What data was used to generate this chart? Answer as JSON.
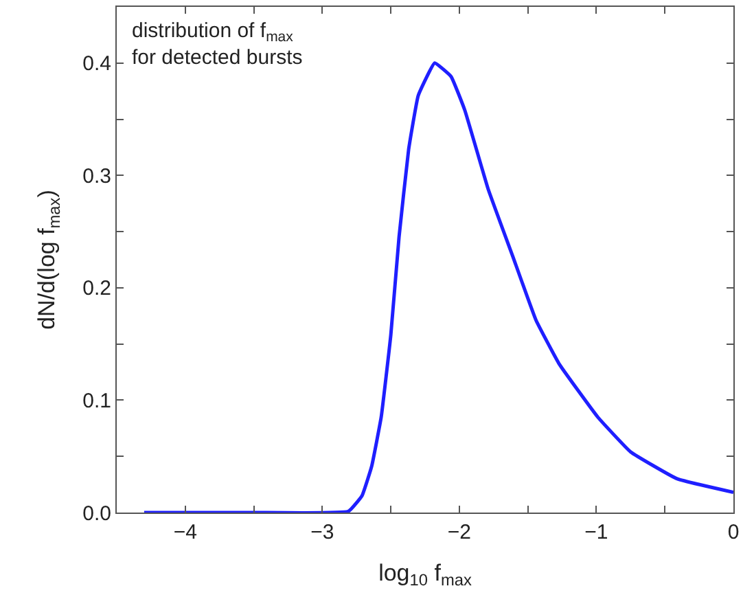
{
  "chart_data": {
    "type": "line",
    "xlabel": "log$_{10}$ f$_{max}$",
    "ylabel": "dN/d(log f$_{max}$)",
    "annotations": [
      "distribution of f$_{max}$\nfor detected bursts"
    ],
    "x": [
      -4.3,
      -3.5,
      -2.81,
      -2.71,
      -2.64,
      -2.57,
      -2.5,
      -2.44,
      -2.37,
      -2.3,
      -2.18,
      -2.06,
      -1.96,
      -1.79,
      -1.61,
      -1.44,
      -1.27,
      -0.99,
      -0.75,
      -0.41,
      0
    ],
    "series": [
      {
        "color": "#1f1fff",
        "values": [
          0,
          0,
          0.001,
          0.015,
          0.041,
          0.085,
          0.158,
          0.245,
          0.323,
          0.371,
          0.4,
          0.388,
          0.358,
          0.288,
          0.228,
          0.171,
          0.132,
          0.085,
          0.054,
          0.03,
          0.018
        ]
      }
    ],
    "xlim": [
      -4.5,
      0
    ],
    "ylim": [
      0,
      0.45
    ],
    "xticks": [
      {
        "value": -4.5,
        "label": null
      },
      -4,
      {
        "value": -3.5,
        "label": null
      },
      -3,
      {
        "value": -2.5,
        "label": null
      },
      -2,
      {
        "value": -1.5,
        "label": null
      },
      -1,
      {
        "value": -0.5,
        "label": null
      },
      0
    ],
    "yticks": [
      {
        "value": 0,
        "label": "0.0"
      },
      {
        "value": 0.05,
        "label": null
      },
      0.1,
      {
        "value": 0.15,
        "label": null
      },
      0.2,
      {
        "value": 0.25,
        "label": null
      },
      0.3,
      {
        "value": 0.35,
        "label": null
      },
      0.4
    ],
    "marker": "none",
    "line_style": "solid"
  }
}
